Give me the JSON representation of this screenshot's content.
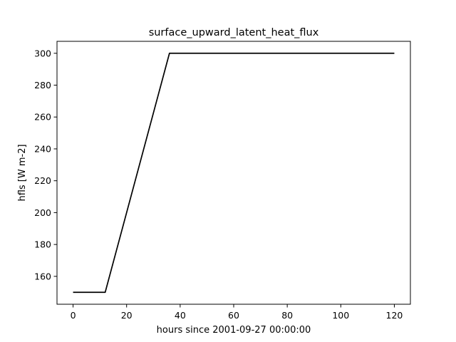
{
  "chart_data": {
    "type": "line",
    "title": "surface_upward_latent_heat_flux",
    "xlabel": "hours since 2001-09-27 00:00:00",
    "ylabel": "hfls [W m-2]",
    "xlim": [
      -6,
      126
    ],
    "ylim": [
      142.5,
      307.5
    ],
    "xticks": [
      0,
      20,
      40,
      60,
      80,
      100,
      120
    ],
    "yticks": [
      160,
      180,
      200,
      220,
      240,
      260,
      280,
      300
    ],
    "grid": false,
    "legend": "none",
    "series": [
      {
        "color": "#000000",
        "x": [
          0,
          12,
          36,
          120
        ],
        "y": [
          150,
          150,
          300,
          300
        ]
      }
    ]
  }
}
